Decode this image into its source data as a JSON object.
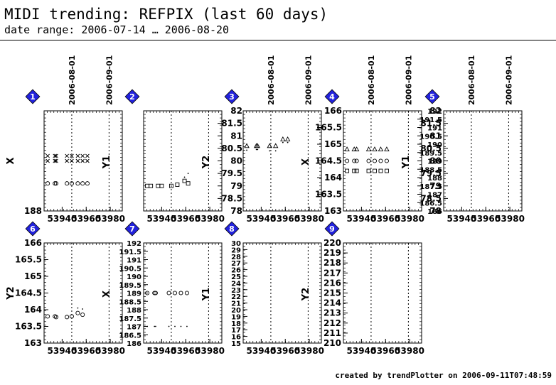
{
  "header": {
    "title": "MIDI trending: REFPIX (last 60 days)",
    "subtitle": "date range: 2006-07-14 … 2006-08-20"
  },
  "footer": {
    "text": "created by trendPlotter on 2006-09-11T07:48:59"
  },
  "colors": {
    "marker_fill": "#2222dd",
    "marker_text": "#ffffff",
    "ink": "#000000"
  },
  "chart_data": [
    {
      "type": "scatter",
      "index": "1",
      "ylabel_left": "X",
      "ylabel_right": "Y1",
      "xlim": [
        53925,
        53990
      ],
      "ylim": [
        188,
        192
      ],
      "xticks": [
        "53940",
        "53960",
        "53980"
      ],
      "yticks_left": [
        {
          "v": 188,
          "t": "188"
        }
      ],
      "yticks_right": [],
      "vlines": [
        {
          "x": 53948,
          "label": "2006-08-01"
        },
        {
          "x": 53979,
          "label": "2006-09-01"
        }
      ],
      "series": [
        {
          "marker": "x",
          "points": [
            [
              53928,
              190
            ],
            [
              53934,
              190
            ],
            [
              53935,
              190
            ],
            [
              53944,
              190
            ],
            [
              53948,
              190
            ],
            [
              53953,
              190
            ],
            [
              53957,
              190
            ],
            [
              53961,
              190
            ]
          ]
        },
        {
          "marker": "x",
          "points": [
            [
              53928,
              190.2
            ],
            [
              53934,
              190.2
            ],
            [
              53935,
              190.2
            ],
            [
              53944,
              190.2
            ],
            [
              53948,
              190.2
            ],
            [
              53953,
              190.2
            ],
            [
              53957,
              190.2
            ],
            [
              53961,
              190.2
            ]
          ]
        },
        {
          "marker": "o",
          "points": [
            [
              53928,
              189.1
            ],
            [
              53934,
              189.1
            ],
            [
              53935,
              189.1
            ],
            [
              53944,
              189.1
            ],
            [
              53948,
              189.1
            ],
            [
              53953,
              189.1
            ],
            [
              53957,
              189.1
            ],
            [
              53961,
              189.1
            ]
          ]
        }
      ]
    },
    {
      "type": "scatter",
      "index": "2",
      "ylabel_left": "",
      "ylabel_right": "Y2",
      "xlim": [
        53925,
        53990
      ],
      "ylim": [
        78,
        82
      ],
      "xticks": [
        "53940",
        "53960",
        "53980"
      ],
      "yticks_left": [],
      "yticks_right": [
        {
          "v": 78,
          "t": "78"
        },
        {
          "v": 78.5,
          "t": "78.5"
        },
        {
          "v": 79,
          "t": "79"
        },
        {
          "v": 79.5,
          "t": "79.5"
        },
        {
          "v": 80,
          "t": "80"
        },
        {
          "v": 80.5,
          "t": "80.5"
        },
        {
          "v": 81,
          "t": "81"
        },
        {
          "v": 81.5,
          "t": "81.5"
        },
        {
          "v": 82,
          "t": "82"
        }
      ],
      "vlines": [
        {
          "x": 53948,
          "label": ""
        },
        {
          "x": 53979,
          "label": ""
        }
      ],
      "series": [
        {
          "marker": "s",
          "points": [
            [
              53928,
              79
            ],
            [
              53931,
              79
            ],
            [
              53937,
              79
            ],
            [
              53940,
              79
            ],
            [
              53948,
              79
            ],
            [
              53953,
              79.05
            ],
            [
              53959,
              79.2
            ],
            [
              53962,
              79.1
            ]
          ]
        },
        {
          "marker": "dot",
          "points": [
            [
              53959,
              79.35
            ],
            [
              53962,
              79.5
            ]
          ]
        }
      ]
    },
    {
      "type": "scatter",
      "index": "3",
      "ylabel_left": "",
      "ylabel_right": "X",
      "xlim": [
        53925,
        53990
      ],
      "ylim": [
        163,
        166
      ],
      "xticks": [
        "53940",
        "53960",
        "53980"
      ],
      "yticks_left": [],
      "yticks_right": [
        {
          "v": 163,
          "t": "163"
        },
        {
          "v": 163.5,
          "t": "163.5"
        },
        {
          "v": 164,
          "t": "164"
        },
        {
          "v": 164.5,
          "t": "164.5"
        },
        {
          "v": 165,
          "t": "165"
        },
        {
          "v": 165.5,
          "t": "165.5"
        },
        {
          "v": 166,
          "t": "166"
        }
      ],
      "vlines": [
        {
          "x": 53948,
          "label": "2006-08-01"
        },
        {
          "x": 53979,
          "label": "2006-09-01"
        }
      ],
      "series": [
        {
          "marker": "^",
          "points": [
            [
              53928,
              164.95
            ],
            [
              53936,
              164.95
            ],
            [
              53937,
              164.95
            ],
            [
              53947,
              164.95
            ],
            [
              53952,
              164.95
            ],
            [
              53958,
              165.15
            ],
            [
              53962,
              165.15
            ]
          ]
        },
        {
          "marker": "dot",
          "points": [
            [
              53928,
              164.82
            ],
            [
              53936,
              164.84
            ],
            [
              53937,
              164.84
            ],
            [
              53947,
              164.8
            ],
            [
              53952,
              164.8
            ],
            [
              53958,
              165.05
            ],
            [
              53962,
              165.05
            ]
          ]
        }
      ]
    },
    {
      "type": "scatter",
      "index": "4",
      "ylabel_left": "",
      "ylabel_right": "Y1",
      "xlim": [
        53925,
        53990
      ],
      "ylim": [
        186,
        192
      ],
      "xticks": [
        "53940",
        "53960",
        "53980"
      ],
      "yticks_left": [],
      "yticks_right": [
        {
          "v": 186,
          "t": "186"
        },
        {
          "v": 186.5,
          "t": "186.5"
        },
        {
          "v": 187,
          "t": "187"
        },
        {
          "v": 187.5,
          "t": "187.5"
        },
        {
          "v": 188,
          "t": "188"
        },
        {
          "v": 188.5,
          "t": "188.5"
        },
        {
          "v": 189,
          "t": "189"
        },
        {
          "v": 189.5,
          "t": "189.5"
        },
        {
          "v": 190,
          "t": "190"
        },
        {
          "v": 190.5,
          "t": "190.5"
        },
        {
          "v": 191,
          "t": "191"
        },
        {
          "v": 191.5,
          "t": "191.5"
        },
        {
          "v": 192,
          "t": "192"
        }
      ],
      "vlines": [
        {
          "x": 53948,
          "label": "2006-08-01"
        },
        {
          "x": 53979,
          "label": "2006-09-01"
        }
      ],
      "series": [
        {
          "marker": "^",
          "points": [
            [
              53928,
              189.7
            ],
            [
              53934,
              189.7
            ],
            [
              53936,
              189.7
            ],
            [
              53946,
              189.7
            ],
            [
              53951,
              189.7
            ],
            [
              53956,
              189.7
            ],
            [
              53961,
              189.7
            ]
          ]
        },
        {
          "marker": "o",
          "points": [
            [
              53928,
              189
            ],
            [
              53934,
              189
            ],
            [
              53936,
              189
            ],
            [
              53946,
              189
            ],
            [
              53951,
              189
            ],
            [
              53956,
              189
            ],
            [
              53961,
              189
            ]
          ]
        },
        {
          "marker": "s",
          "points": [
            [
              53928,
              188.4
            ],
            [
              53934,
              188.4
            ],
            [
              53936,
              188.4
            ],
            [
              53946,
              188.4
            ],
            [
              53951,
              188.4
            ],
            [
              53956,
              188.4
            ],
            [
              53961,
              188.4
            ]
          ]
        }
      ]
    },
    {
      "type": "scatter",
      "index": "5",
      "ylabel_left": "",
      "ylabel_right": "",
      "xlim": [
        53925,
        53990
      ],
      "ylim": [
        78,
        82
      ],
      "xticks": [
        "53940",
        "53960",
        "53980"
      ],
      "yticks_left": [
        {
          "v": 78,
          "t": "78"
        },
        {
          "v": 78.5,
          "t": "78.5"
        },
        {
          "v": 79,
          "t": "79"
        },
        {
          "v": 79.5,
          "t": "79.5"
        },
        {
          "v": 80,
          "t": "80"
        },
        {
          "v": 80.5,
          "t": "80.5"
        },
        {
          "v": 81,
          "t": "81"
        },
        {
          "v": 81.5,
          "t": "81.5"
        },
        {
          "v": 82,
          "t": "82"
        }
      ],
      "yticks_right": [],
      "vlines": [
        {
          "x": 53948,
          "label": "2006-08-01"
        },
        {
          "x": 53979,
          "label": "2006-09-01"
        }
      ],
      "series": []
    },
    {
      "type": "scatter",
      "index": "6",
      "ylabel_left": "Y2",
      "ylabel_right": "X",
      "xlim": [
        53925,
        53990
      ],
      "ylim": [
        163,
        166
      ],
      "xticks": [
        "53940",
        "53960",
        "53980"
      ],
      "yticks_left": [
        {
          "v": 163,
          "t": "163"
        },
        {
          "v": 163.5,
          "t": "163.5"
        },
        {
          "v": 164,
          "t": "164"
        },
        {
          "v": 164.5,
          "t": "164.5"
        },
        {
          "v": 165,
          "t": "165"
        },
        {
          "v": 165.5,
          "t": "165.5"
        },
        {
          "v": 166,
          "t": "166"
        }
      ],
      "yticks_right": [],
      "vlines": [
        {
          "x": 53948,
          "label": ""
        },
        {
          "x": 53979,
          "label": ""
        }
      ],
      "series": [
        {
          "marker": "o",
          "points": [
            [
              53928,
              163.8
            ],
            [
              53934,
              163.8
            ],
            [
              53935,
              163.78
            ],
            [
              53944,
              163.78
            ],
            [
              53948,
              163.8
            ],
            [
              53953,
              163.9
            ],
            [
              53957,
              163.85
            ]
          ]
        },
        {
          "marker": "dot",
          "points": [
            [
              53953,
              164.05
            ],
            [
              53957,
              164.02
            ]
          ]
        }
      ]
    },
    {
      "type": "scatter",
      "index": "7",
      "ylabel_left": "",
      "ylabel_right": "Y1",
      "xlim": [
        53925,
        53990
      ],
      "ylim": [
        186,
        192
      ],
      "xticks": [
        "53940",
        "53960",
        "53980"
      ],
      "yticks_left": [
        {
          "v": 186,
          "t": "186"
        },
        {
          "v": 186.5,
          "t": "186.5"
        },
        {
          "v": 187,
          "t": "187"
        },
        {
          "v": 187.5,
          "t": "187.5"
        },
        {
          "v": 188,
          "t": "188"
        },
        {
          "v": 188.5,
          "t": "188.5"
        },
        {
          "v": 189,
          "t": "189"
        },
        {
          "v": 189.5,
          "t": "189.5"
        },
        {
          "v": 190,
          "t": "190"
        },
        {
          "v": 190.5,
          "t": "190.5"
        },
        {
          "v": 191,
          "t": "191"
        },
        {
          "v": 191.5,
          "t": "191.5"
        },
        {
          "v": 192,
          "t": "192"
        }
      ],
      "yticks_right": [],
      "vlines": [
        {
          "x": 53948,
          "label": ""
        },
        {
          "x": 53979,
          "label": ""
        }
      ],
      "series": [
        {
          "marker": "o",
          "points": [
            [
              53928,
              189
            ],
            [
              53934,
              189
            ],
            [
              53935,
              189
            ],
            [
              53946,
              189
            ],
            [
              53951,
              189
            ],
            [
              53956,
              189
            ],
            [
              53961,
              189
            ]
          ]
        },
        {
          "marker": "dot",
          "points": [
            [
              53928,
              187
            ],
            [
              53934,
              187
            ],
            [
              53935,
              187
            ],
            [
              53946,
              187
            ],
            [
              53951,
              187
            ],
            [
              53956,
              187
            ],
            [
              53961,
              187
            ]
          ]
        }
      ]
    },
    {
      "type": "scatter",
      "index": "8",
      "ylabel_left": "",
      "ylabel_right": "Y2",
      "xlim": [
        53925,
        53990
      ],
      "ylim": [
        15,
        30
      ],
      "xticks": [
        "53940",
        "53960",
        "53980"
      ],
      "yticks_left": [
        {
          "v": 15,
          "t": "15"
        },
        {
          "v": 16,
          "t": "16"
        },
        {
          "v": 17,
          "t": "17"
        },
        {
          "v": 18,
          "t": "18"
        },
        {
          "v": 19,
          "t": "19"
        },
        {
          "v": 20,
          "t": "20"
        },
        {
          "v": 21,
          "t": "21"
        },
        {
          "v": 22,
          "t": "22"
        },
        {
          "v": 23,
          "t": "23"
        },
        {
          "v": 24,
          "t": "24"
        },
        {
          "v": 25,
          "t": "25"
        },
        {
          "v": 26,
          "t": "26"
        },
        {
          "v": 27,
          "t": "27"
        },
        {
          "v": 28,
          "t": "28"
        },
        {
          "v": 29,
          "t": "29"
        },
        {
          "v": 30,
          "t": "30"
        }
      ],
      "yticks_right": [],
      "vlines": [
        {
          "x": 53948,
          "label": ""
        },
        {
          "x": 53979,
          "label": ""
        }
      ],
      "series": []
    },
    {
      "type": "scatter",
      "index": "9",
      "ylabel_left": "",
      "ylabel_right": "",
      "xlim": [
        53925,
        53990
      ],
      "ylim": [
        210,
        220
      ],
      "xticks": [
        "53940",
        "53960",
        "53980"
      ],
      "yticks_left": [
        {
          "v": 210,
          "t": "210"
        },
        {
          "v": 211,
          "t": "211"
        },
        {
          "v": 212,
          "t": "212"
        },
        {
          "v": 213,
          "t": "213"
        },
        {
          "v": 214,
          "t": "214"
        },
        {
          "v": 215,
          "t": "215"
        },
        {
          "v": 216,
          "t": "216"
        },
        {
          "v": 217,
          "t": "217"
        },
        {
          "v": 218,
          "t": "218"
        },
        {
          "v": 219,
          "t": "219"
        },
        {
          "v": 220,
          "t": "220"
        }
      ],
      "yticks_right": [],
      "vlines": [
        {
          "x": 53948,
          "label": ""
        },
        {
          "x": 53979,
          "label": ""
        }
      ],
      "series": []
    }
  ]
}
